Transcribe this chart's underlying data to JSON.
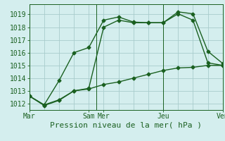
{
  "background_color": "#d4eeee",
  "grid_color": "#a8cccc",
  "line_color": "#1a6020",
  "xlabel": "Pression niveau de la mer( hPa )",
  "ylim": [
    1011.5,
    1019.8
  ],
  "xlim": [
    0,
    13
  ],
  "series1_x": [
    0,
    1,
    2,
    3,
    4,
    5,
    6,
    7,
    8,
    9,
    10,
    11,
    12,
    13
  ],
  "series1_y": [
    1012.6,
    1011.9,
    1012.3,
    1013.0,
    1013.2,
    1018.0,
    1018.55,
    1018.35,
    1018.35,
    1018.35,
    1019.05,
    1018.55,
    1015.2,
    1015.0
  ],
  "series2_x": [
    0,
    1,
    2,
    3,
    4,
    5,
    6,
    7,
    8,
    9,
    10,
    11,
    12,
    13
  ],
  "series2_y": [
    1012.6,
    1011.9,
    1013.8,
    1016.0,
    1016.4,
    1018.55,
    1018.8,
    1018.4,
    1018.35,
    1018.35,
    1019.2,
    1019.05,
    1016.1,
    1015.15
  ],
  "series3_x": [
    0,
    1,
    2,
    3,
    4,
    5,
    6,
    7,
    8,
    9,
    10,
    11,
    12,
    13
  ],
  "series3_y": [
    1012.6,
    1011.85,
    1012.25,
    1013.0,
    1013.15,
    1013.5,
    1013.7,
    1014.0,
    1014.3,
    1014.6,
    1014.8,
    1014.85,
    1015.0,
    1015.0
  ],
  "yticks": [
    1012,
    1013,
    1014,
    1015,
    1016,
    1017,
    1018,
    1019
  ],
  "vline_x": [
    0,
    4.5,
    9,
    13
  ],
  "day_labels": [
    "Mar",
    "Sam",
    "Mer",
    "Jeu",
    "Ven"
  ],
  "day_x": [
    0,
    4,
    5,
    9,
    13
  ],
  "font_size_xlabel": 8,
  "font_size_tick": 7,
  "marker_size": 2.5,
  "line_width": 1.0
}
